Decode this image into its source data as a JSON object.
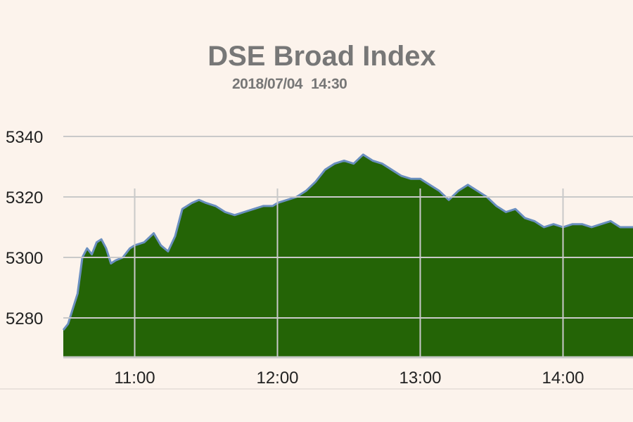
{
  "colors": {
    "background": "#fcf3ec",
    "area_fill": "#246406",
    "line": "#6a8fbf",
    "grid": "#c9c9c9",
    "title": "#777777"
  },
  "chart_data": {
    "type": "area",
    "title": "DSE Broad Index",
    "subtitle_date": "2018/07/04",
    "subtitle_time": "14:30",
    "xlabel": "",
    "ylabel": "",
    "x_ticks": [
      "11:00",
      "12:00",
      "13:00",
      "14:00"
    ],
    "y_ticks": [
      5280,
      5300,
      5320,
      5340
    ],
    "xlim": [
      "10:30",
      "14:30"
    ],
    "ylim": [
      5268,
      5345
    ],
    "grid": true,
    "legend": "none",
    "x": [
      "10:30",
      "10:32",
      "10:34",
      "10:36",
      "10:38",
      "10:40",
      "10:42",
      "10:44",
      "10:46",
      "10:48",
      "10:50",
      "10:52",
      "10:55",
      "10:58",
      "11:00",
      "11:04",
      "11:08",
      "11:11",
      "11:14",
      "11:17",
      "11:20",
      "11:24",
      "11:27",
      "11:30",
      "11:34",
      "11:38",
      "11:42",
      "11:46",
      "11:50",
      "11:54",
      "11:58",
      "12:00",
      "12:04",
      "12:08",
      "12:12",
      "12:16",
      "12:20",
      "12:24",
      "12:28",
      "12:32",
      "12:36",
      "12:40",
      "12:44",
      "12:48",
      "12:52",
      "12:56",
      "13:00",
      "13:04",
      "13:08",
      "13:12",
      "13:16",
      "13:20",
      "13:24",
      "13:28",
      "13:32",
      "13:36",
      "13:40",
      "13:44",
      "13:48",
      "13:52",
      "13:56",
      "14:00",
      "14:04",
      "14:08",
      "14:12",
      "14:16",
      "14:20",
      "14:24",
      "14:28",
      "14:30"
    ],
    "y": [
      5276,
      5278,
      5283,
      5288,
      5300,
      5303,
      5301,
      5305,
      5306,
      5303,
      5298,
      5299,
      5300,
      5303,
      5304,
      5305,
      5308,
      5304,
      5302,
      5307,
      5316,
      5318,
      5319,
      5318,
      5317,
      5315,
      5314,
      5315,
      5316,
      5317,
      5317,
      5318,
      5319,
      5320,
      5322,
      5325,
      5329,
      5331,
      5332,
      5331,
      5334,
      5332,
      5331,
      5329,
      5327,
      5326,
      5326,
      5324,
      5322,
      5319,
      5322,
      5324,
      5322,
      5320,
      5317,
      5315,
      5316,
      5313,
      5312,
      5310,
      5311,
      5310,
      5311,
      5311,
      5310,
      5311,
      5312,
      5310,
      5310,
      5310
    ]
  }
}
